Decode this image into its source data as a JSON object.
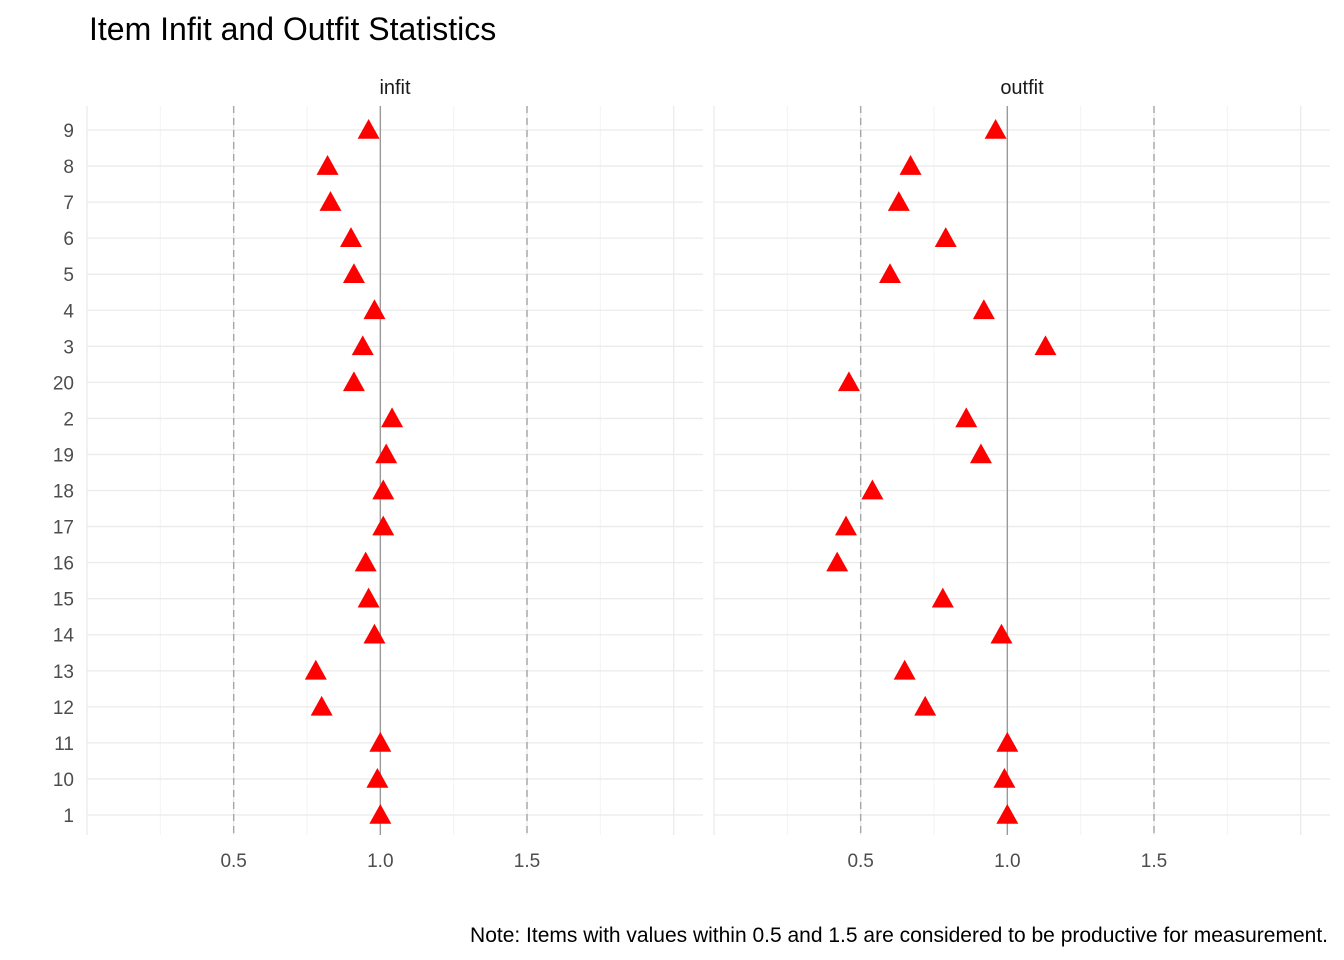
{
  "chart_data": {
    "type": "scatter",
    "title": "Item Infit and Outfit Statistics",
    "caption": "Note: Items with values within 0.5 and 1.5 are considered to be productive for measurement.",
    "categories": [
      "1",
      "10",
      "11",
      "12",
      "13",
      "14",
      "15",
      "16",
      "17",
      "18",
      "19",
      "2",
      "20",
      "3",
      "4",
      "5",
      "6",
      "7",
      "8",
      "9"
    ],
    "x_ticks": [
      "0.5",
      "1.0",
      "1.5"
    ],
    "x_tick_values": [
      0.5,
      1.0,
      1.5
    ],
    "xlim": [
      -0.0,
      2.1
    ],
    "reference_lines": {
      "solid": 1.0,
      "dashed": [
        0.5,
        1.5
      ]
    },
    "marker": {
      "shape": "triangle",
      "color": "#ff0000"
    },
    "grid": true,
    "panels": [
      {
        "name": "infit",
        "values": [
          1.0,
          0.99,
          1.0,
          0.8,
          0.78,
          0.98,
          0.96,
          0.95,
          1.01,
          1.01,
          1.02,
          1.04,
          0.91,
          0.94,
          0.98,
          0.91,
          0.9,
          0.83,
          0.82,
          0.96
        ]
      },
      {
        "name": "outfit",
        "values": [
          1.0,
          0.99,
          1.0,
          0.72,
          0.65,
          0.98,
          0.78,
          0.42,
          0.45,
          0.54,
          0.91,
          0.86,
          0.46,
          1.13,
          0.92,
          0.6,
          0.79,
          0.63,
          0.67,
          0.96
        ]
      }
    ]
  }
}
